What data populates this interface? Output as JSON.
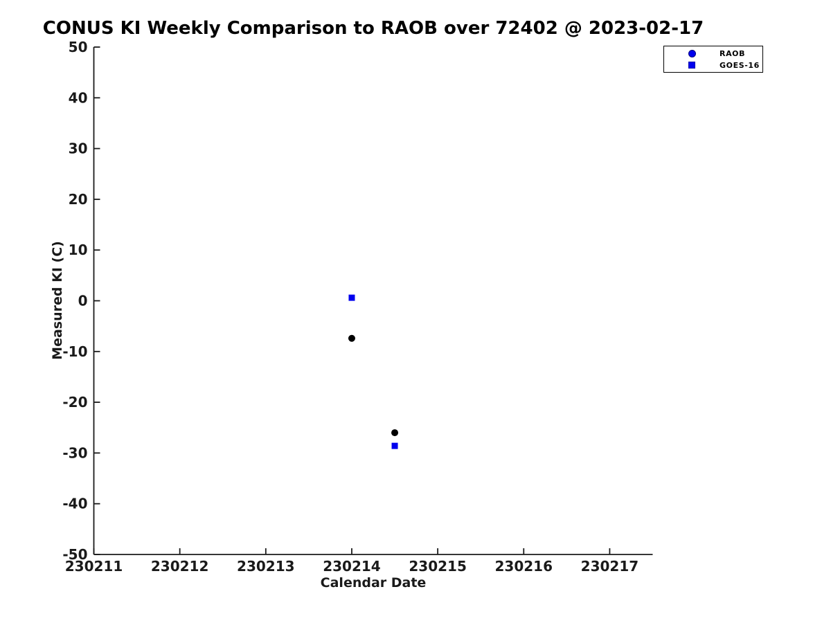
{
  "chart_data": {
    "type": "scatter",
    "title": "CONUS KI Weekly Comparison to RAOB over 72402 @ 2023-02-17",
    "xlabel": "Calendar Date",
    "ylabel": "Measured KI (C)",
    "xlim": [
      230211,
      230217.5
    ],
    "ylim": [
      -50,
      50
    ],
    "xticks": [
      230211,
      230212,
      230213,
      230214,
      230215,
      230216,
      230217
    ],
    "yticks": [
      50,
      40,
      30,
      20,
      10,
      0,
      -10,
      -20,
      -30,
      -40,
      -50
    ],
    "grid": false,
    "legend_position": "top-right",
    "axis_color": "#1a1a1a",
    "series": [
      {
        "name": "RAOB",
        "marker": "circle",
        "plot_color": "#000000",
        "legend_color": "#0000ee",
        "points": [
          {
            "x": 230214.0,
            "y": -7.4
          },
          {
            "x": 230214.5,
            "y": -26.0
          }
        ]
      },
      {
        "name": "GOES-16",
        "marker": "square",
        "plot_color": "#0000ee",
        "legend_color": "#0000ee",
        "points": [
          {
            "x": 230214.0,
            "y": 0.6
          },
          {
            "x": 230214.5,
            "y": -28.6
          }
        ]
      }
    ]
  }
}
